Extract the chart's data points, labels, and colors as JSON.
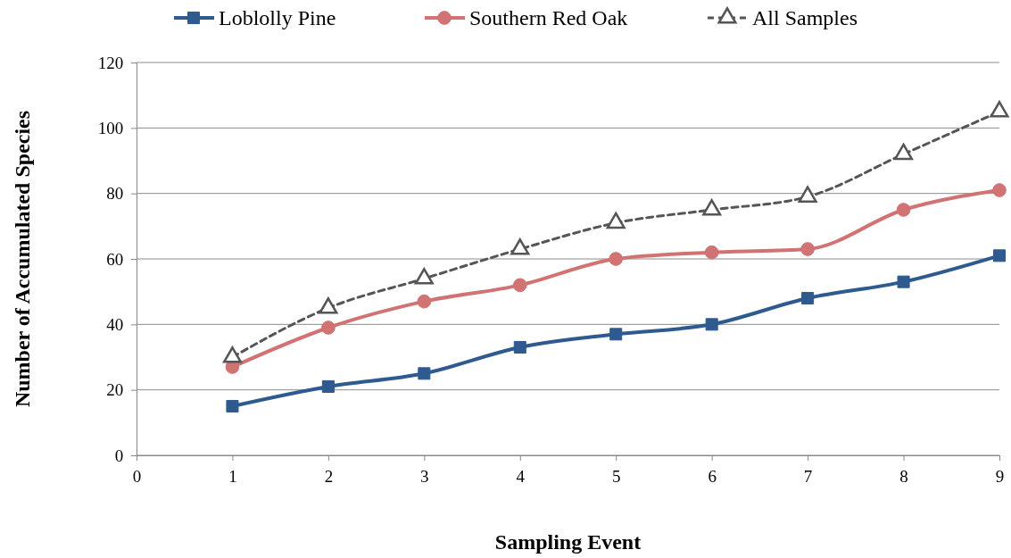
{
  "chart_data": {
    "type": "line",
    "xlabel": "Sampling Event",
    "ylabel": "Number of Accumulated Species",
    "x": [
      1,
      2,
      3,
      4,
      5,
      6,
      7,
      8,
      9
    ],
    "xlim": [
      0,
      9
    ],
    "xticks": [
      0,
      1,
      2,
      3,
      4,
      5,
      6,
      7,
      8,
      9
    ],
    "ylim": [
      0,
      120
    ],
    "yticks": [
      0,
      20,
      40,
      60,
      80,
      100,
      120
    ],
    "grid": "y",
    "legend": "top",
    "series": [
      {
        "name": "Loblolly Pine",
        "color": "#2f5a8f",
        "marker": "square",
        "line_style": "solid",
        "values": [
          15,
          21,
          25,
          33,
          37,
          40,
          48,
          53,
          61
        ]
      },
      {
        "name": "Southern Red Oak",
        "color": "#d27373",
        "marker": "circle",
        "line_style": "solid",
        "values": [
          27,
          39,
          47,
          52,
          60,
          62,
          63,
          75,
          81
        ]
      },
      {
        "name": "All Samples",
        "color": "#555555",
        "marker": "triangle",
        "line_style": "dashed",
        "values": [
          30,
          45,
          54,
          63,
          71,
          75,
          79,
          92,
          105
        ]
      }
    ]
  }
}
